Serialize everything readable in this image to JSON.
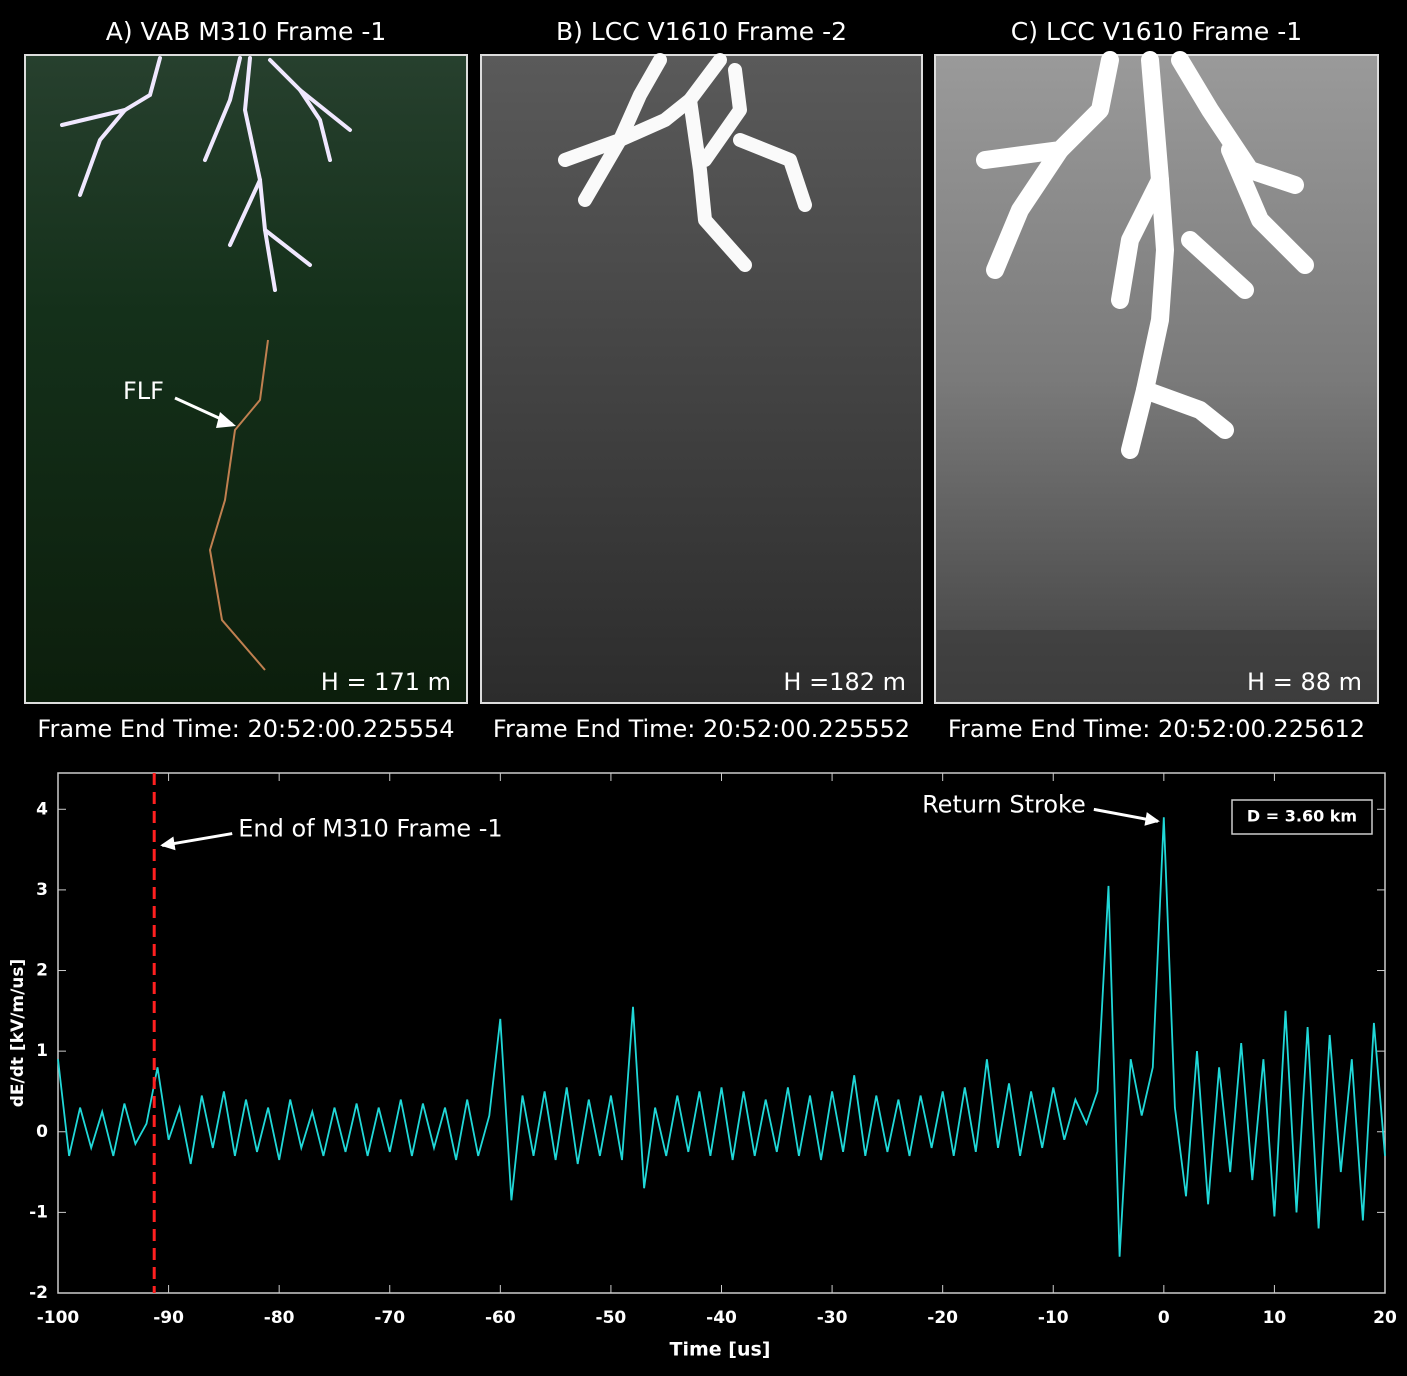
{
  "panels": [
    {
      "title": "A) VAB M310 Frame -1",
      "height_label": "H = 171 m",
      "caption": "Frame End Time: 20:52:00.225554",
      "annotation": "FLF"
    },
    {
      "title": "B) LCC V1610 Frame -2",
      "height_label": "H =182 m",
      "caption": "Frame End Time: 20:52:00.225552"
    },
    {
      "title": "C) LCC V1610 Frame -1",
      "height_label": "H = 88 m",
      "caption": "Frame End Time:  20:52:00.225612"
    }
  ],
  "chart_data": {
    "type": "line",
    "x_label": "Time [us]",
    "y_label": "dE/dt [kV/m/us]",
    "xlim": [
      -100,
      20
    ],
    "ylim": [
      -2,
      4.45
    ],
    "xticks": [
      -100,
      -90,
      -80,
      -70,
      -60,
      -50,
      -40,
      -30,
      -20,
      -10,
      0,
      10,
      20
    ],
    "yticks": [
      -2,
      -1,
      0,
      1,
      2,
      3,
      4
    ],
    "box_text": "D = 3.60 km",
    "vline": {
      "x": -91.3,
      "color": "#ff2020"
    },
    "annotations": [
      {
        "text": "End of M310 Frame -1",
        "x": -91.3,
        "y": 3.55
      },
      {
        "text": "Return Stroke",
        "x": 0,
        "y": 3.85
      }
    ],
    "series": [
      {
        "color": "#20d8d8",
        "x": [
          -100,
          -99,
          -98,
          -97,
          -96,
          -95,
          -94,
          -93,
          -92,
          -91,
          -90,
          -89,
          -88,
          -87,
          -86,
          -85,
          -84,
          -83,
          -82,
          -81,
          -80,
          -79,
          -78,
          -77,
          -76,
          -75,
          -74,
          -73,
          -72,
          -71,
          -70,
          -69,
          -68,
          -67,
          -66,
          -65,
          -64,
          -63,
          -62,
          -61,
          -60,
          -59,
          -58,
          -57,
          -56,
          -55,
          -54,
          -53,
          -52,
          -51,
          -50,
          -49,
          -48,
          -47,
          -46,
          -45,
          -44,
          -43,
          -42,
          -41,
          -40,
          -39,
          -38,
          -37,
          -36,
          -35,
          -34,
          -33,
          -32,
          -31,
          -30,
          -29,
          -28,
          -27,
          -26,
          -25,
          -24,
          -23,
          -22,
          -21,
          -20,
          -19,
          -18,
          -17,
          -16,
          -15,
          -14,
          -13,
          -12,
          -11,
          -10,
          -9,
          -8,
          -7,
          -6,
          -5,
          -4,
          -3,
          -2,
          -1,
          0,
          1,
          2,
          3,
          4,
          5,
          6,
          7,
          8,
          9,
          10,
          11,
          12,
          13,
          14,
          15,
          16,
          17,
          18,
          19,
          20
        ],
        "values": [
          0.9,
          -0.3,
          0.3,
          -0.2,
          0.25,
          -0.3,
          0.35,
          -0.15,
          0.1,
          0.8,
          -0.1,
          0.3,
          -0.4,
          0.45,
          -0.2,
          0.5,
          -0.3,
          0.4,
          -0.25,
          0.3,
          -0.35,
          0.4,
          -0.2,
          0.25,
          -0.3,
          0.3,
          -0.25,
          0.35,
          -0.3,
          0.3,
          -0.25,
          0.4,
          -0.3,
          0.35,
          -0.2,
          0.3,
          -0.35,
          0.4,
          -0.3,
          0.2,
          1.4,
          -0.85,
          0.45,
          -0.3,
          0.5,
          -0.35,
          0.55,
          -0.4,
          0.4,
          -0.3,
          0.45,
          -0.35,
          1.55,
          -0.7,
          0.3,
          -0.3,
          0.45,
          -0.25,
          0.5,
          -0.3,
          0.55,
          -0.35,
          0.5,
          -0.3,
          0.4,
          -0.25,
          0.55,
          -0.3,
          0.45,
          -0.35,
          0.5,
          -0.25,
          0.7,
          -0.3,
          0.45,
          -0.25,
          0.4,
          -0.3,
          0.45,
          -0.2,
          0.5,
          -0.3,
          0.55,
          -0.25,
          0.9,
          -0.2,
          0.6,
          -0.3,
          0.5,
          -0.2,
          0.55,
          -0.1,
          0.4,
          0.1,
          0.5,
          3.05,
          -1.55,
          0.9,
          0.2,
          0.8,
          3.9,
          0.3,
          -0.8,
          1.0,
          -0.9,
          0.8,
          -0.5,
          1.1,
          -0.6,
          0.9,
          -1.05,
          1.5,
          -1.0,
          1.3,
          -1.2,
          1.2,
          -0.5,
          0.9,
          -1.1,
          1.35,
          -0.3
        ]
      }
    ]
  }
}
